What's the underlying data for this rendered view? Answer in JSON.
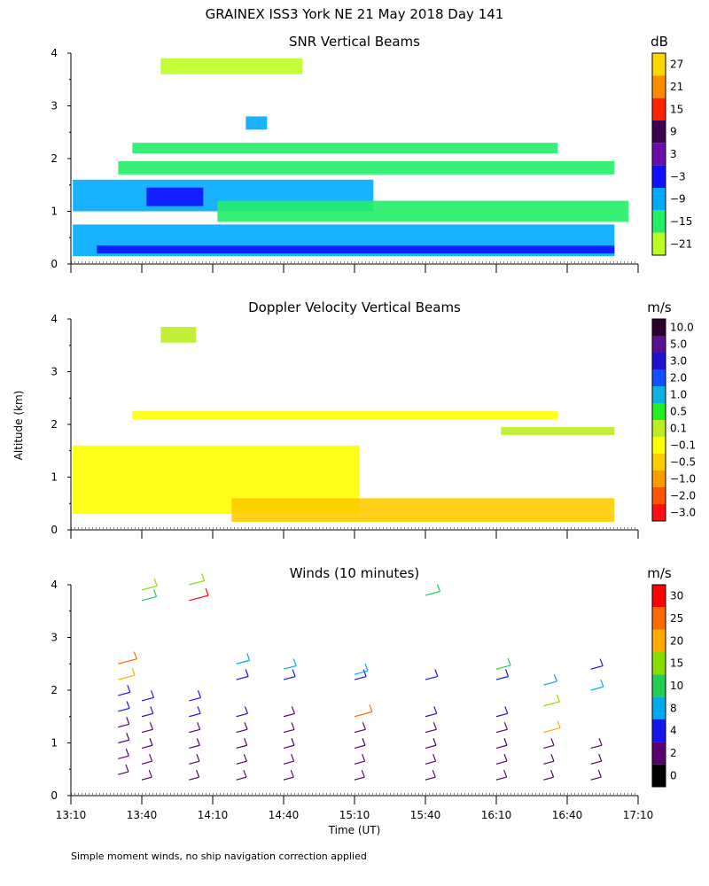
{
  "figure": {
    "title": "GRAINEX ISS3 York NE  21 May 2018 Day 141",
    "ylabel": "Altitude (km)",
    "xlabel": "Time (UT)",
    "footnote": "Simple moment winds, no ship navigation correction applied",
    "xticks": [
      "13:10",
      "13:40",
      "14:10",
      "14:40",
      "15:10",
      "15:40",
      "16:10",
      "16:40",
      "17:10"
    ],
    "yticks": [
      "0",
      "1",
      "2",
      "3",
      "4"
    ]
  },
  "chart_data": [
    {
      "id": "snr",
      "type": "heatmap",
      "title": "SNR Vertical Beams",
      "unit": "dB",
      "xlim": [
        "13:10",
        "17:10"
      ],
      "ylim": [
        0,
        4
      ],
      "colorbar": {
        "labels": [
          "27",
          "21",
          "15",
          "9",
          "3",
          "−3",
          "−9",
          "−15",
          "−21"
        ],
        "colors": [
          "#ffd700",
          "#ff8c00",
          "#ff2200",
          "#3a0050",
          "#6a0dad",
          "#1010ff",
          "#00aaff",
          "#22ee66",
          "#bbff22"
        ]
      },
      "layers": [
        {
          "t0": 13.18,
          "t1": 17.0,
          "z0": 0.15,
          "z1": 0.75,
          "level": "−9"
        },
        {
          "t0": 13.18,
          "t1": 15.3,
          "z0": 1.0,
          "z1": 1.6,
          "level": "−9"
        },
        {
          "t0": 13.7,
          "t1": 14.1,
          "z0": 1.1,
          "z1": 1.45,
          "level": "−3"
        },
        {
          "t0": 13.35,
          "t1": 17.0,
          "z0": 0.2,
          "z1": 0.35,
          "level": "−3"
        },
        {
          "t0": 14.2,
          "t1": 17.1,
          "z0": 0.8,
          "z1": 1.2,
          "level": "−15"
        },
        {
          "t0": 13.6,
          "t1": 16.6,
          "z0": 2.1,
          "z1": 2.3,
          "level": "−15"
        },
        {
          "t0": 13.5,
          "t1": 17.0,
          "z0": 1.7,
          "z1": 1.95,
          "level": "−15"
        },
        {
          "t0": 13.8,
          "t1": 14.8,
          "z0": 3.6,
          "z1": 3.9,
          "level": "−21"
        },
        {
          "t0": 14.4,
          "t1": 14.55,
          "z0": 2.55,
          "z1": 2.8,
          "level": "−9"
        }
      ]
    },
    {
      "id": "doppler",
      "type": "heatmap",
      "title": "Doppler Velocity Vertical Beams",
      "unit": "m/s",
      "xlim": [
        "13:10",
        "17:10"
      ],
      "ylim": [
        0,
        4
      ],
      "colorbar": {
        "labels": [
          "10.0",
          "5.0",
          "3.0",
          "2.0",
          "1.0",
          "0.5",
          "0.1",
          "−0.1",
          "−0.5",
          "−1.0",
          "−2.0",
          "−3.0"
        ],
        "colors": [
          "#2a0030",
          "#5a1090",
          "#2010d0",
          "#1050ff",
          "#10b0e0",
          "#22ee22",
          "#bbee22",
          "#ffff00",
          "#ffcc00",
          "#ff9900",
          "#ff5500",
          "#ff1010"
        ]
      },
      "layers": [
        {
          "t0": 13.18,
          "t1": 15.2,
          "z0": 0.3,
          "z1": 1.6,
          "level": "−0.1"
        },
        {
          "t0": 14.3,
          "t1": 17.0,
          "z0": 0.15,
          "z1": 0.6,
          "level": "−0.5"
        },
        {
          "t0": 13.6,
          "t1": 16.6,
          "z0": 2.1,
          "z1": 2.25,
          "level": "−0.1"
        },
        {
          "t0": 16.2,
          "t1": 17.0,
          "z0": 1.8,
          "z1": 1.95,
          "level": "0.1"
        },
        {
          "t0": 13.8,
          "t1": 14.05,
          "z0": 3.55,
          "z1": 3.85,
          "level": "0.1"
        }
      ]
    },
    {
      "id": "winds",
      "type": "scatter",
      "title": "Winds (10 minutes)",
      "unit": "m/s",
      "xlim": [
        "13:10",
        "17:10"
      ],
      "ylim": [
        0,
        4
      ],
      "colorbar": {
        "labels": [
          "30",
          "25",
          "20",
          "15",
          "10",
          "8",
          "4",
          "2",
          "0"
        ],
        "colors": [
          "#ff0000",
          "#ff6a00",
          "#ffaa00",
          "#88dd00",
          "#22cc55",
          "#00aaee",
          "#1515ee",
          "#5a0070",
          "#000000"
        ]
      },
      "barbs": [
        {
          "time": "13:30",
          "z": [
            0.4,
            0.7,
            1.0,
            1.3,
            1.6,
            1.9,
            2.2,
            2.5
          ],
          "speed": [
            3,
            4,
            5,
            5,
            6,
            8,
            22,
            28
          ]
        },
        {
          "time": "13:40",
          "z": [
            0.3,
            0.6,
            0.9,
            1.2,
            1.5,
            1.8,
            3.7,
            3.9
          ],
          "speed": [
            2,
            3,
            4,
            5,
            6,
            8,
            16,
            18
          ]
        },
        {
          "time": "14:00",
          "z": [
            0.3,
            0.6,
            0.9,
            1.2,
            1.5,
            1.8,
            3.7,
            4.0
          ],
          "speed": [
            2,
            3,
            4,
            5,
            6,
            7,
            30,
            18
          ]
        },
        {
          "time": "14:20",
          "z": [
            0.3,
            0.6,
            0.9,
            1.2,
            1.5,
            2.2,
            2.5
          ],
          "speed": [
            2,
            3,
            4,
            5,
            6,
            8,
            12
          ]
        },
        {
          "time": "14:40",
          "z": [
            0.3,
            0.6,
            0.9,
            1.2,
            1.5,
            2.2,
            2.4
          ],
          "speed": [
            2,
            3,
            4,
            4,
            5,
            7,
            10
          ]
        },
        {
          "time": "15:10",
          "z": [
            0.3,
            0.6,
            0.9,
            1.2,
            1.5,
            2.2,
            2.3
          ],
          "speed": [
            2,
            3,
            4,
            5,
            25,
            7,
            12
          ]
        },
        {
          "time": "15:40",
          "z": [
            0.3,
            0.6,
            0.9,
            1.2,
            1.5,
            2.2,
            3.8
          ],
          "speed": [
            2,
            3,
            4,
            5,
            6,
            9,
            16
          ]
        },
        {
          "time": "16:10",
          "z": [
            0.3,
            0.6,
            0.9,
            1.2,
            1.5,
            2.2,
            2.4
          ],
          "speed": [
            3,
            4,
            4,
            5,
            6,
            8,
            15
          ]
        },
        {
          "time": "16:30",
          "z": [
            0.3,
            0.6,
            0.9,
            1.2,
            1.7,
            2.1
          ],
          "speed": [
            2,
            3,
            3,
            22,
            20,
            12
          ]
        },
        {
          "time": "16:50",
          "z": [
            0.3,
            0.6,
            0.9,
            2.0,
            2.4
          ],
          "speed": [
            3,
            4,
            5,
            10,
            8
          ]
        }
      ]
    }
  ]
}
